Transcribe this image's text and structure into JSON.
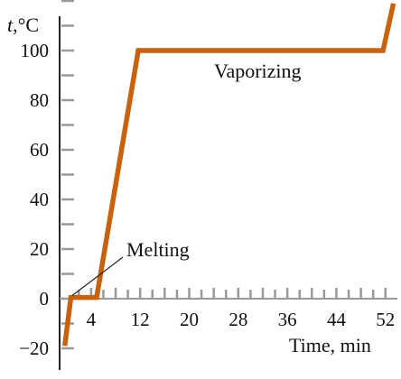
{
  "chart_data": {
    "type": "line",
    "ylabel": "t,°C",
    "xlabel": "Time, min",
    "x_ticks": [
      4,
      12,
      20,
      28,
      36,
      44,
      52
    ],
    "y_ticks": [
      -20,
      0,
      20,
      40,
      60,
      80,
      100
    ],
    "xlim": [
      -0.5,
      53.5
    ],
    "ylim": [
      -24,
      125
    ],
    "series": [
      {
        "points": [
          {
            "x": -0.3,
            "y": -19
          },
          {
            "x": 0.7,
            "y": 0.5
          },
          {
            "x": 4.9,
            "y": 0.5
          },
          {
            "x": 11.7,
            "y": 100
          },
          {
            "x": 51.6,
            "y": 100
          },
          {
            "x": 53.3,
            "y": 119
          }
        ]
      }
    ],
    "annotations": [
      {
        "text": "Melting",
        "x": 0.9,
        "y": 0.5
      },
      {
        "text": "Vaporizing",
        "x": 31,
        "y": 100
      }
    ],
    "grid": false,
    "colors": {
      "line": "#c8620e",
      "axis": "#222222",
      "minor_tick": "#999999"
    }
  }
}
